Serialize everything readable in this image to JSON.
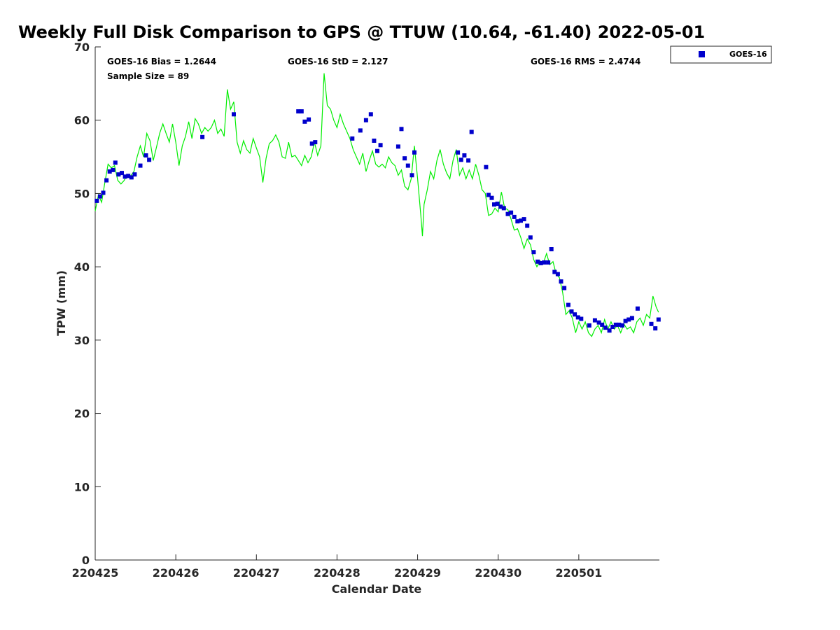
{
  "chart_data": {
    "type": "scatter",
    "title": "Weekly Full Disk Comparison to GPS @ TTUW (10.64, -61.40) 2022-05-01",
    "xlabel": "Calendar Date",
    "ylabel": "TPW (mm)",
    "xlim": [
      0,
      7
    ],
    "ylim": [
      0,
      70
    ],
    "x_ticks": [
      0,
      1,
      2,
      3,
      4,
      5,
      6
    ],
    "x_tick_labels": [
      "220425",
      "220426",
      "220427",
      "220428",
      "220429",
      "220430",
      "220501"
    ],
    "y_ticks": [
      0,
      10,
      20,
      30,
      40,
      50,
      60,
      70
    ],
    "y_tick_labels": [
      "0",
      "10",
      "20",
      "30",
      "40",
      "50",
      "60",
      "70"
    ],
    "stats": {
      "bias": "GOES-16 Bias = 1.2644",
      "sample": "Sample Size = 89",
      "std": "GOES-16 StD = 2.127",
      "rms": "GOES-16 RMS = 2.4744"
    },
    "legend": {
      "position": "outside-top-right",
      "entries": [
        {
          "name": "GOES-16",
          "color": "#0000cc",
          "marker": "square"
        }
      ]
    },
    "series": [
      {
        "name": "GPS",
        "color": "#00ee00",
        "kind": "line",
        "points": [
          [
            0.0,
            47.6
          ],
          [
            0.04,
            49.8
          ],
          [
            0.08,
            48.8
          ],
          [
            0.12,
            51.5
          ],
          [
            0.16,
            54.0
          ],
          [
            0.2,
            53.5
          ],
          [
            0.24,
            53.8
          ],
          [
            0.28,
            51.8
          ],
          [
            0.32,
            51.3
          ],
          [
            0.36,
            51.8
          ],
          [
            0.4,
            52.6
          ],
          [
            0.44,
            52.4
          ],
          [
            0.48,
            53.0
          ],
          [
            0.52,
            55.0
          ],
          [
            0.56,
            56.5
          ],
          [
            0.6,
            55.0
          ],
          [
            0.64,
            58.2
          ],
          [
            0.68,
            57.2
          ],
          [
            0.72,
            54.5
          ],
          [
            0.76,
            56.3
          ],
          [
            0.8,
            58.2
          ],
          [
            0.84,
            59.5
          ],
          [
            0.88,
            58.2
          ],
          [
            0.92,
            57.0
          ],
          [
            0.96,
            59.5
          ],
          [
            1.0,
            57.0
          ],
          [
            1.04,
            53.8
          ],
          [
            1.08,
            56.5
          ],
          [
            1.12,
            57.8
          ],
          [
            1.16,
            59.8
          ],
          [
            1.2,
            57.5
          ],
          [
            1.24,
            60.2
          ],
          [
            1.28,
            59.5
          ],
          [
            1.32,
            58.2
          ],
          [
            1.36,
            59.0
          ],
          [
            1.4,
            58.5
          ],
          [
            1.44,
            59.0
          ],
          [
            1.48,
            60.0
          ],
          [
            1.52,
            58.2
          ],
          [
            1.56,
            58.8
          ],
          [
            1.6,
            57.8
          ],
          [
            1.64,
            64.2
          ],
          [
            1.68,
            61.5
          ],
          [
            1.72,
            62.5
          ],
          [
            1.76,
            57.0
          ],
          [
            1.8,
            55.5
          ],
          [
            1.84,
            57.2
          ],
          [
            1.88,
            56.0
          ],
          [
            1.92,
            55.5
          ],
          [
            1.96,
            57.5
          ],
          [
            2.0,
            56.2
          ],
          [
            2.04,
            55.0
          ],
          [
            2.08,
            51.5
          ],
          [
            2.12,
            54.8
          ],
          [
            2.16,
            56.8
          ],
          [
            2.2,
            57.2
          ],
          [
            2.24,
            58.0
          ],
          [
            2.28,
            57.0
          ],
          [
            2.32,
            55.0
          ],
          [
            2.36,
            54.8
          ],
          [
            2.4,
            57.0
          ],
          [
            2.44,
            55.0
          ],
          [
            2.48,
            55.2
          ],
          [
            2.52,
            54.5
          ],
          [
            2.56,
            53.8
          ],
          [
            2.6,
            55.2
          ],
          [
            2.64,
            54.2
          ],
          [
            2.68,
            55.0
          ],
          [
            2.72,
            57.0
          ],
          [
            2.76,
            55.2
          ],
          [
            2.8,
            56.5
          ],
          [
            2.84,
            66.4
          ],
          [
            2.88,
            62.0
          ],
          [
            2.92,
            61.5
          ],
          [
            2.96,
            60.0
          ],
          [
            3.0,
            59.0
          ],
          [
            3.04,
            60.8
          ],
          [
            3.08,
            59.5
          ],
          [
            3.12,
            58.5
          ],
          [
            3.16,
            57.5
          ],
          [
            3.2,
            56.0
          ],
          [
            3.24,
            55.0
          ],
          [
            3.28,
            54.0
          ],
          [
            3.32,
            55.5
          ],
          [
            3.36,
            53.0
          ],
          [
            3.4,
            54.5
          ],
          [
            3.44,
            55.8
          ],
          [
            3.48,
            54.0
          ],
          [
            3.52,
            53.6
          ],
          [
            3.56,
            54.0
          ],
          [
            3.6,
            53.5
          ],
          [
            3.64,
            55.0
          ],
          [
            3.68,
            54.2
          ],
          [
            3.72,
            53.8
          ],
          [
            3.76,
            52.5
          ],
          [
            3.8,
            53.2
          ],
          [
            3.84,
            51.0
          ],
          [
            3.88,
            50.5
          ],
          [
            3.92,
            52.0
          ],
          [
            3.96,
            56.5
          ],
          [
            4.0,
            52.0
          ],
          [
            4.04,
            47.0
          ],
          [
            4.06,
            44.2
          ],
          [
            4.08,
            48.5
          ],
          [
            4.12,
            50.5
          ],
          [
            4.16,
            53.0
          ],
          [
            4.2,
            52.0
          ],
          [
            4.24,
            54.5
          ],
          [
            4.28,
            56.0
          ],
          [
            4.32,
            54.0
          ],
          [
            4.36,
            52.8
          ],
          [
            4.4,
            52.0
          ],
          [
            4.44,
            54.5
          ],
          [
            4.48,
            56.0
          ],
          [
            4.52,
            52.5
          ],
          [
            4.56,
            53.5
          ],
          [
            4.6,
            52.0
          ],
          [
            4.64,
            53.2
          ],
          [
            4.68,
            52.0
          ],
          [
            4.72,
            54.0
          ],
          [
            4.76,
            52.5
          ],
          [
            4.8,
            50.5
          ],
          [
            4.84,
            50.0
          ],
          [
            4.88,
            47.0
          ],
          [
            4.92,
            47.2
          ],
          [
            4.96,
            48.0
          ],
          [
            5.0,
            47.5
          ],
          [
            5.04,
            50.2
          ],
          [
            5.08,
            48.0
          ],
          [
            5.12,
            47.8
          ],
          [
            5.16,
            46.5
          ],
          [
            5.2,
            45.0
          ],
          [
            5.24,
            45.2
          ],
          [
            5.28,
            44.0
          ],
          [
            5.32,
            42.5
          ],
          [
            5.36,
            43.8
          ],
          [
            5.4,
            43.0
          ],
          [
            5.44,
            41.0
          ],
          [
            5.48,
            40.0
          ],
          [
            5.52,
            40.8
          ],
          [
            5.56,
            40.5
          ],
          [
            5.6,
            41.8
          ],
          [
            5.64,
            40.3
          ],
          [
            5.68,
            40.7
          ],
          [
            5.72,
            39.0
          ],
          [
            5.76,
            38.5
          ],
          [
            5.8,
            36.5
          ],
          [
            5.84,
            33.5
          ],
          [
            5.88,
            34.0
          ],
          [
            5.92,
            33.0
          ],
          [
            5.96,
            31.0
          ],
          [
            6.0,
            32.5
          ],
          [
            6.04,
            31.5
          ],
          [
            6.08,
            32.5
          ],
          [
            6.12,
            31.0
          ],
          [
            6.16,
            30.5
          ],
          [
            6.2,
            31.5
          ],
          [
            6.24,
            32.0
          ],
          [
            6.28,
            31.0
          ],
          [
            6.32,
            32.8
          ],
          [
            6.36,
            31.5
          ],
          [
            6.4,
            32.5
          ],
          [
            6.44,
            31.5
          ],
          [
            6.48,
            32.0
          ],
          [
            6.52,
            31.0
          ],
          [
            6.56,
            32.2
          ],
          [
            6.6,
            31.5
          ],
          [
            6.64,
            31.8
          ],
          [
            6.68,
            31.0
          ],
          [
            6.72,
            32.5
          ],
          [
            6.76,
            33.0
          ],
          [
            6.8,
            32.0
          ],
          [
            6.84,
            33.5
          ],
          [
            6.88,
            33.0
          ],
          [
            6.92,
            36.0
          ],
          [
            6.96,
            34.5
          ],
          [
            6.99,
            33.8
          ]
        ]
      },
      {
        "name": "GOES-16",
        "color": "#0000cc",
        "kind": "scatter",
        "points": [
          [
            0.02,
            49.0
          ],
          [
            0.06,
            49.6
          ],
          [
            0.1,
            50.1
          ],
          [
            0.14,
            51.8
          ],
          [
            0.18,
            53.0
          ],
          [
            0.22,
            53.2
          ],
          [
            0.25,
            54.2
          ],
          [
            0.29,
            52.6
          ],
          [
            0.33,
            52.8
          ],
          [
            0.37,
            52.3
          ],
          [
            0.41,
            52.4
          ],
          [
            0.45,
            52.2
          ],
          [
            0.49,
            52.6
          ],
          [
            0.56,
            53.8
          ],
          [
            0.63,
            55.2
          ],
          [
            0.67,
            54.6
          ],
          [
            1.33,
            57.7
          ],
          [
            1.72,
            60.8
          ],
          [
            2.52,
            61.2
          ],
          [
            2.56,
            61.2
          ],
          [
            2.6,
            59.8
          ],
          [
            2.65,
            60.1
          ],
          [
            2.69,
            56.8
          ],
          [
            2.73,
            57.0
          ],
          [
            3.19,
            57.5
          ],
          [
            3.29,
            58.6
          ],
          [
            3.36,
            60.0
          ],
          [
            3.42,
            60.8
          ],
          [
            3.46,
            57.2
          ],
          [
            3.5,
            55.8
          ],
          [
            3.54,
            56.6
          ],
          [
            3.76,
            56.4
          ],
          [
            3.8,
            58.8
          ],
          [
            3.84,
            54.8
          ],
          [
            3.88,
            53.8
          ],
          [
            3.93,
            52.5
          ],
          [
            3.96,
            55.6
          ],
          [
            4.5,
            55.6
          ],
          [
            4.54,
            54.6
          ],
          [
            4.58,
            55.2
          ],
          [
            4.63,
            54.5
          ],
          [
            4.67,
            58.4
          ],
          [
            4.85,
            53.6
          ],
          [
            4.88,
            49.8
          ],
          [
            4.92,
            49.4
          ],
          [
            4.95,
            48.5
          ],
          [
            4.99,
            48.6
          ],
          [
            5.03,
            48.2
          ],
          [
            5.07,
            48.0
          ],
          [
            5.12,
            47.2
          ],
          [
            5.16,
            47.4
          ],
          [
            5.2,
            46.8
          ],
          [
            5.24,
            46.2
          ],
          [
            5.28,
            46.3
          ],
          [
            5.32,
            46.5
          ],
          [
            5.36,
            45.6
          ],
          [
            5.4,
            44.0
          ],
          [
            5.44,
            42.0
          ],
          [
            5.49,
            40.7
          ],
          [
            5.53,
            40.5
          ],
          [
            5.57,
            40.6
          ],
          [
            5.62,
            40.6
          ],
          [
            5.66,
            42.4
          ],
          [
            5.7,
            39.3
          ],
          [
            5.74,
            39.0
          ],
          [
            5.78,
            38.0
          ],
          [
            5.82,
            37.1
          ],
          [
            5.87,
            34.8
          ],
          [
            5.91,
            33.9
          ],
          [
            5.95,
            33.5
          ],
          [
            5.99,
            33.1
          ],
          [
            6.03,
            32.9
          ],
          [
            6.13,
            32.0
          ],
          [
            6.2,
            32.7
          ],
          [
            6.25,
            32.4
          ],
          [
            6.29,
            32.1
          ],
          [
            6.33,
            31.7
          ],
          [
            6.38,
            31.3
          ],
          [
            6.42,
            31.8
          ],
          [
            6.46,
            32.1
          ],
          [
            6.5,
            32.1
          ],
          [
            6.54,
            32.0
          ],
          [
            6.58,
            32.6
          ],
          [
            6.62,
            32.8
          ],
          [
            6.66,
            33.0
          ],
          [
            6.73,
            34.3
          ],
          [
            6.9,
            32.2
          ],
          [
            6.95,
            31.6
          ],
          [
            6.99,
            32.8
          ]
        ]
      }
    ]
  }
}
